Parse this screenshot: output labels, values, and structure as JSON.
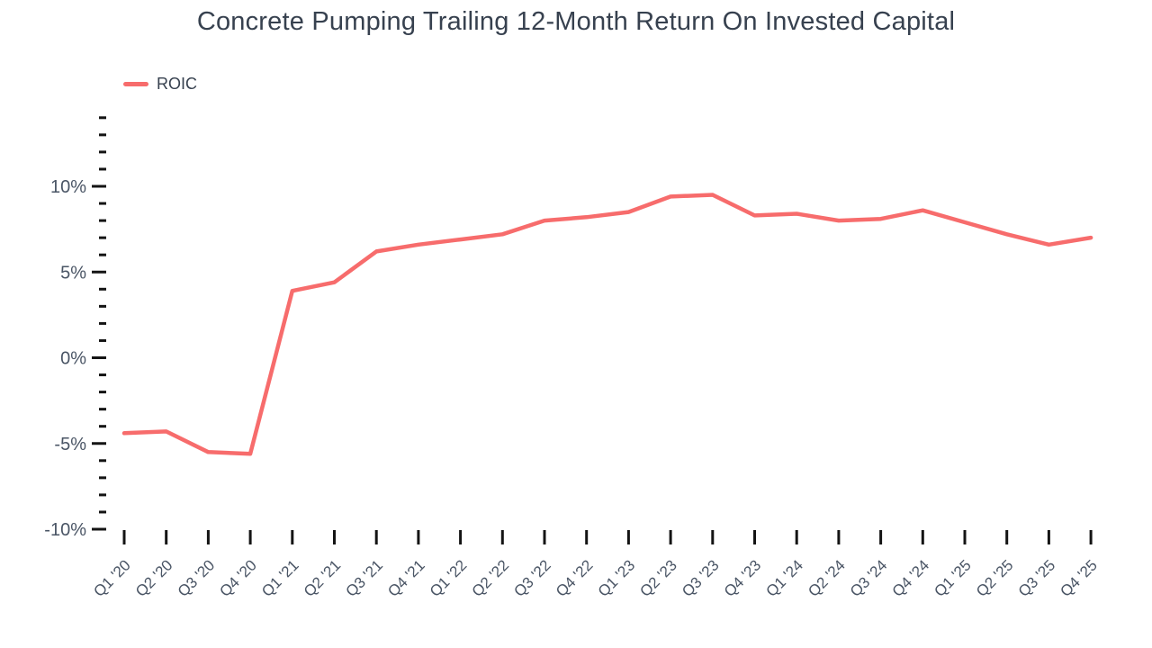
{
  "header": {
    "title": "Concrete Pumping Trailing 12-Month Return On Invested Capital"
  },
  "legend": {
    "items": [
      {
        "label": "ROIC",
        "color": "#f76c6c"
      }
    ]
  },
  "chart_data": {
    "type": "line",
    "title": "Concrete Pumping Trailing 12-Month Return On Invested Capital",
    "xlabel": "",
    "ylabel": "",
    "grid": false,
    "legend_position": "top-left",
    "categories": [
      "Q1 '20",
      "Q2 '20",
      "Q3 '20",
      "Q4 '20",
      "Q1 '21",
      "Q2 '21",
      "Q3 '21",
      "Q4 '21",
      "Q1 '22",
      "Q2 '22",
      "Q3 '22",
      "Q4 '22",
      "Q1 '23",
      "Q2 '23",
      "Q3 '23",
      "Q4 '23",
      "Q1 '24",
      "Q2 '24",
      "Q3 '24",
      "Q4 '24",
      "Q1 '25",
      "Q2 '25",
      "Q3 '25",
      "Q4 '25"
    ],
    "series": [
      {
        "name": "ROIC",
        "color": "#f76c6c",
        "values": [
          -4.4,
          -4.3,
          -5.5,
          -5.6,
          3.9,
          4.4,
          6.2,
          6.6,
          6.9,
          7.2,
          8.0,
          8.2,
          8.5,
          9.4,
          9.5,
          8.3,
          8.4,
          8.0,
          8.1,
          8.6,
          7.9,
          7.2,
          6.6,
          7.0
        ]
      }
    ],
    "ylim": [
      -10,
      14
    ],
    "yticks_major": {
      "values": [
        10,
        5,
        0,
        -5,
        -10
      ],
      "labels": [
        "10%",
        "5%",
        "0%",
        "-5%",
        "-10%"
      ]
    },
    "ytick_minor_step": 1,
    "colors": {
      "line": "#f76c6c",
      "title_text": "#37414f",
      "axis_label_text": "#4a5565",
      "tick": "#141414",
      "background": "#ffffff"
    }
  }
}
